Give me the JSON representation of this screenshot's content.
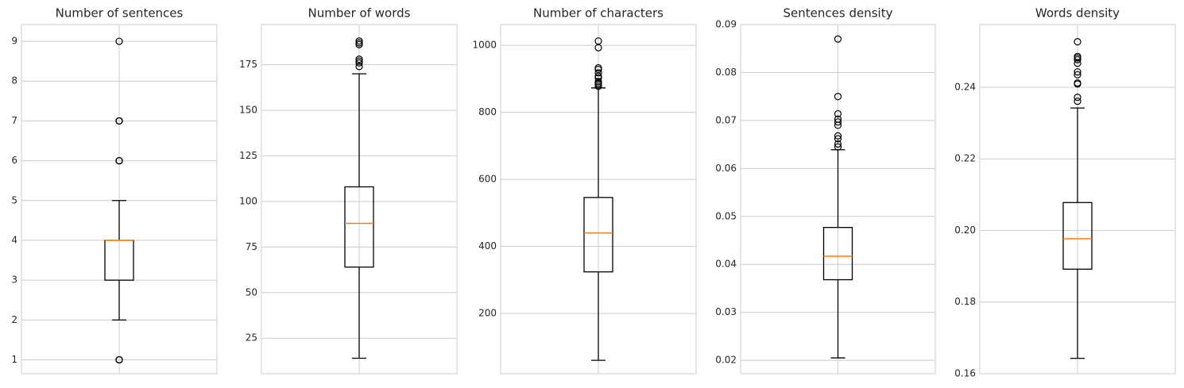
{
  "chart_data": [
    {
      "type": "box",
      "title": "Number of sentences",
      "ylim": [
        0.65,
        9.42
      ],
      "yticks": [
        1,
        2,
        3,
        4,
        5,
        6,
        7,
        8,
        9
      ],
      "tick_format": 0,
      "whisker_low": 2,
      "q1": 3,
      "median": 4,
      "q3": 4,
      "whisker_high": 5,
      "outliers": [
        1,
        1,
        1,
        6,
        6,
        6,
        7,
        7,
        7,
        9
      ]
    },
    {
      "type": "box",
      "title": "Number of words",
      "ylim": [
        5.5,
        197
      ],
      "yticks": [
        25,
        50,
        75,
        100,
        125,
        150,
        175
      ],
      "tick_format": 0,
      "whisker_low": 14,
      "q1": 64,
      "median": 88,
      "q3": 108,
      "whisker_high": 170,
      "outliers": [
        174,
        176,
        177,
        178,
        186,
        187,
        188
      ]
    },
    {
      "type": "box",
      "title": "Number of characters",
      "ylim": [
        20,
        1062
      ],
      "yticks": [
        200,
        400,
        600,
        800,
        1000
      ],
      "tick_format": 0,
      "whisker_low": 60,
      "q1": 324,
      "median": 440,
      "q3": 546,
      "whisker_high": 873,
      "outliers": [
        878,
        883,
        887,
        892,
        903,
        908,
        918,
        928,
        933,
        993,
        1013
      ]
    },
    {
      "type": "box",
      "title": "Sentences density",
      "ylim": [
        0.0172,
        0.09
      ],
      "yticks": [
        0.02,
        0.03,
        0.04,
        0.05,
        0.06,
        0.07,
        0.08,
        0.09
      ],
      "tick_format": 2,
      "whisker_low": 0.0205,
      "q1": 0.0368,
      "median": 0.0417,
      "q3": 0.0477,
      "whisker_high": 0.0639,
      "outliers": [
        0.0645,
        0.0651,
        0.0662,
        0.0668,
        0.069,
        0.0697,
        0.0703,
        0.0714,
        0.075,
        0.087
      ]
    },
    {
      "type": "box",
      "title": "Words density",
      "ylim": [
        0.16,
        0.2575
      ],
      "yticks": [
        0.16,
        0.18,
        0.2,
        0.22,
        0.24
      ],
      "tick_format": 2,
      "whisker_low": 0.1643,
      "q1": 0.1892,
      "median": 0.1977,
      "q3": 0.2078,
      "whisker_high": 0.2342,
      "outliers": [
        0.2361,
        0.2372,
        0.2409,
        0.2412,
        0.2435,
        0.2443,
        0.2467,
        0.2477,
        0.2482,
        0.2486,
        0.2527
      ]
    }
  ],
  "style": {
    "grid_color": "#cccccc",
    "box_color": "#000000",
    "median_color": "#ff7f0e",
    "text_color": "#262626"
  }
}
